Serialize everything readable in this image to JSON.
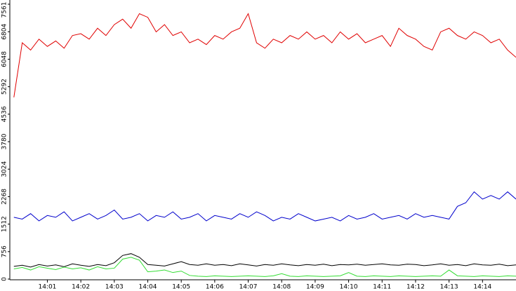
{
  "chart_data": {
    "type": "line",
    "x": [
      0,
      0.25,
      0.5,
      0.75,
      1,
      1.25,
      1.5,
      1.75,
      2,
      2.25,
      2.5,
      2.75,
      3,
      3.25,
      3.5,
      3.75,
      4,
      4.25,
      4.5,
      4.75,
      5,
      5.25,
      5.5,
      5.75,
      6,
      6.25,
      6.5,
      6.75,
      7,
      7.25,
      7.5,
      7.75,
      8,
      8.25,
      8.5,
      8.75,
      9,
      9.25,
      9.5,
      9.75,
      10,
      10.25,
      10.5,
      10.75,
      11,
      11.25,
      11.5,
      11.75,
      12,
      12.25,
      12.5,
      12.75,
      13,
      13.25,
      13.5,
      13.75,
      14,
      14.25,
      14.5,
      14.75,
      15
    ],
    "series": [
      {
        "color": "#e00000",
        "values": [
          5000,
          6500,
          6300,
          6600,
          6400,
          6550,
          6350,
          6700,
          6750,
          6600,
          6900,
          6700,
          7000,
          7150,
          6900,
          7300,
          7200,
          6800,
          7000,
          6700,
          6800,
          6500,
          6600,
          6450,
          6700,
          6600,
          6800,
          6900,
          7300,
          6500,
          6350,
          6600,
          6500,
          6700,
          6600,
          6800,
          6600,
          6700,
          6500,
          6800,
          6600,
          6750,
          6500,
          6600,
          6700,
          6400,
          6900,
          6700,
          6600,
          6400,
          6300,
          6800,
          6900,
          6700,
          6600,
          6800,
          6700,
          6500,
          6600,
          6300,
          6100
        ]
      },
      {
        "color": "#0000cc",
        "values": [
          1700,
          1650,
          1800,
          1600,
          1750,
          1700,
          1850,
          1600,
          1700,
          1800,
          1650,
          1750,
          1900,
          1650,
          1700,
          1800,
          1600,
          1750,
          1700,
          1850,
          1650,
          1700,
          1800,
          1600,
          1750,
          1700,
          1650,
          1800,
          1700,
          1850,
          1750,
          1600,
          1700,
          1650,
          1800,
          1700,
          1600,
          1650,
          1700,
          1600,
          1750,
          1650,
          1700,
          1800,
          1650,
          1700,
          1750,
          1650,
          1800,
          1700,
          1750,
          1700,
          1650,
          2000,
          2100,
          2400,
          2200,
          2300,
          2200,
          2400,
          2200
        ]
      },
      {
        "color": "#000000",
        "values": [
          350,
          380,
          330,
          400,
          360,
          390,
          340,
          420,
          380,
          350,
          400,
          370,
          450,
          650,
          700,
          600,
          400,
          380,
          360,
          420,
          480,
          400,
          380,
          420,
          380,
          400,
          370,
          420,
          390,
          360,
          400,
          380,
          420,
          390,
          370,
          400,
          380,
          410,
          370,
          400,
          390,
          410,
          380,
          400,
          420,
          390,
          380,
          410,
          400,
          370,
          390,
          420,
          380,
          400,
          370,
          420,
          390,
          380,
          410,
          370,
          390
        ]
      },
      {
        "color": "#33dd33",
        "values": [
          280,
          320,
          250,
          340,
          300,
          260,
          330,
          280,
          310,
          250,
          340,
          280,
          300,
          550,
          600,
          520,
          200,
          220,
          250,
          180,
          220,
          100,
          80,
          70,
          90,
          80,
          70,
          80,
          90,
          80,
          70,
          90,
          150,
          80,
          70,
          90,
          80,
          70,
          80,
          90,
          180,
          80,
          70,
          90,
          80,
          70,
          90,
          80,
          70,
          80,
          90,
          80,
          250,
          90,
          80,
          70,
          90,
          80,
          70,
          90,
          80
        ]
      }
    ],
    "xlim": [
      -0.1,
      15.0
    ],
    "xticks": [
      {
        "value": 1,
        "label": "14:01"
      },
      {
        "value": 2,
        "label": "14:02"
      },
      {
        "value": 3,
        "label": "14:03"
      },
      {
        "value": 4,
        "label": "14:04"
      },
      {
        "value": 5,
        "label": "14:05"
      },
      {
        "value": 6,
        "label": "14:06"
      },
      {
        "value": 7,
        "label": "14:07"
      },
      {
        "value": 8,
        "label": "14:08"
      },
      {
        "value": 9,
        "label": "14:09"
      },
      {
        "value": 10,
        "label": "14:10"
      },
      {
        "value": 11,
        "label": "14:11"
      },
      {
        "value": 12,
        "label": "14:12"
      },
      {
        "value": 13,
        "label": "14:13"
      },
      {
        "value": 14,
        "label": "14:14"
      }
    ],
    "ylim": [
      0,
      7561
    ],
    "yticks": [
      0,
      756,
      1512,
      2268,
      3024,
      3780,
      4536,
      5292,
      6048,
      6804,
      7561
    ]
  }
}
